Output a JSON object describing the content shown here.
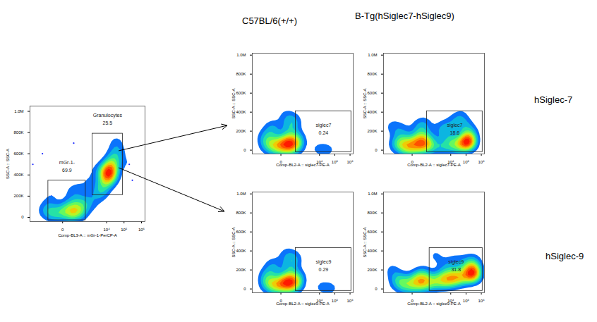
{
  "column_titles": [
    "C57BL/6(+/+)",
    "B-Tg(hSiglec7-hSiglec9)"
  ],
  "row_titles": [
    "hSiglec-7",
    "hSiglec-9"
  ],
  "chart_data": [
    {
      "type": "scatter",
      "x_label": "Comp-BL3-A :: mGr-1-PerCP-A",
      "y_label": "SSC-A :: SSC-A",
      "log": "x",
      "xlim": [
        -2200,
        1600000
      ],
      "xticks": [
        0,
        {
          "value": 10000,
          "label": "10⁴"
        },
        {
          "value": 100000,
          "label": "10⁵"
        },
        {
          "value": 1000000,
          "label": "10⁶"
        }
      ],
      "ylim": [
        -40000,
        1050000
      ],
      "yticks": [
        0,
        {
          "value": 200000,
          "label": "200K"
        },
        {
          "value": 400000,
          "label": "400K"
        },
        {
          "value": 600000,
          "label": "600K"
        },
        {
          "value": 800000,
          "label": "800K"
        },
        {
          "value": 1000000,
          "label": "1.0M"
        }
      ],
      "x": [
        0,
        50,
        -80,
        150,
        100,
        -150,
        250,
        20,
        -50,
        300,
        80,
        -200,
        180,
        400,
        -100,
        60,
        500,
        -300,
        200,
        30,
        120,
        -30,
        70,
        10,
        600,
        1500,
        3000,
        800,
        2500,
        -400,
        100,
        5000,
        13000,
        10000,
        16000,
        12000,
        20000,
        9000,
        14000,
        25000,
        7000,
        30000,
        11000,
        18000,
        5000,
        40000,
        13000,
        15000,
        35000,
        9500,
        12500,
        14500,
        45000,
        4500,
        22000,
        17000,
        11500,
        300000,
        200000,
        -1500
      ],
      "y": [
        40000,
        60000,
        30000,
        50000,
        80000,
        70000,
        40000,
        100000,
        20000,
        90000,
        130000,
        110000,
        160000,
        60000,
        200000,
        240000,
        120000,
        50000,
        280000,
        10000,
        30000,
        55000,
        45000,
        70000,
        180000,
        120000,
        200000,
        350000,
        450000,
        600000,
        700000,
        300000,
        420000,
        400000,
        450000,
        380000,
        500000,
        350000,
        430000,
        550000,
        300000,
        600000,
        460000,
        390000,
        260000,
        650000,
        340000,
        480000,
        720000,
        420000,
        440000,
        410000,
        580000,
        230000,
        470000,
        520000,
        370000,
        350000,
        500000,
        500000
      ],
      "gates": [
        {
          "label": "Granulocytes",
          "value": 25.5,
          "xlim": [
            1500,
            84000
          ],
          "ylim": [
            210000,
            790000
          ]
        },
        {
          "label": "mGr-1-",
          "value": 69.9,
          "xlim": [
            -170,
            600
          ],
          "ylim": [
            -27000,
            347000
          ]
        }
      ]
    },
    {
      "type": "scatter",
      "x_label": "Comp-BL2-A :: siglec7-PE-A",
      "y_label": "SSC-A :: SSC-A",
      "log": "x",
      "xlim": [
        -2200,
        1600000
      ],
      "xticks": [
        0,
        {
          "value": 10000,
          "label": "10⁴"
        },
        {
          "value": 100000,
          "label": "10⁵"
        },
        {
          "value": 1000000,
          "label": "10⁶"
        }
      ],
      "ylim": [
        -40000,
        1020000
      ],
      "yticks": [
        0,
        {
          "value": 200000,
          "label": "200K"
        },
        {
          "value": 400000,
          "label": "400K"
        },
        {
          "value": 600000,
          "label": "600K"
        },
        {
          "value": 800000,
          "label": "800K"
        },
        {
          "value": 1000000,
          "label": "1.0M"
        }
      ],
      "x": [
        0,
        40,
        -60,
        120,
        90,
        -120,
        200,
        10,
        -40,
        250,
        70,
        -180,
        150,
        320,
        -90,
        50,
        380,
        -250,
        160,
        25,
        100,
        -20,
        60,
        5,
        -300,
        180,
        30,
        -70,
        8000,
        40000
      ],
      "y": [
        40000,
        60000,
        30000,
        50000,
        80000,
        70000,
        40000,
        100000,
        20000,
        90000,
        130000,
        110000,
        160000,
        60000,
        200000,
        240000,
        120000,
        50000,
        280000,
        10000,
        30000,
        55000,
        45000,
        70000,
        150000,
        320000,
        360000,
        250000,
        15000,
        5000
      ],
      "gates": [
        {
          "label": "siglec7",
          "value": 0.24,
          "xlim": [
            250,
            1200000
          ],
          "ylim": [
            -20000,
            410000
          ]
        }
      ]
    },
    {
      "type": "scatter",
      "x_label": "Comp-BL2-A :: siglec7-PE-A",
      "y_label": "SSC-A :: SSC-A",
      "log": "x",
      "xlim": [
        -2200,
        1600000
      ],
      "xticks": [
        0,
        {
          "value": 10000,
          "label": "10⁴"
        },
        {
          "value": 100000,
          "label": "10⁵"
        },
        {
          "value": 1000000,
          "label": "10⁶"
        }
      ],
      "ylim": [
        -40000,
        1020000
      ],
      "yticks": [
        0,
        {
          "value": 200000,
          "label": "200K"
        },
        {
          "value": 400000,
          "label": "400K"
        },
        {
          "value": 600000,
          "label": "600K"
        },
        {
          "value": 800000,
          "label": "800K"
        },
        {
          "value": 1000000,
          "label": "1.0M"
        }
      ],
      "x": [
        0,
        40,
        -60,
        120,
        90,
        -120,
        200,
        10,
        -40,
        250,
        70,
        -180,
        150,
        320,
        -90,
        50,
        -300,
        160,
        25,
        -20,
        1000,
        3000,
        8000,
        15000,
        30000,
        60000,
        100000,
        130000,
        150000,
        120000,
        180000,
        90000,
        140000,
        5000,
        20000,
        50000,
        2000,
        80000,
        10000,
        -500,
        200000
      ],
      "y": [
        40000,
        60000,
        30000,
        50000,
        80000,
        70000,
        40000,
        100000,
        20000,
        90000,
        130000,
        110000,
        160000,
        60000,
        200000,
        240000,
        50000,
        280000,
        10000,
        55000,
        30000,
        40000,
        50000,
        60000,
        40000,
        70000,
        80000,
        90000,
        70000,
        110000,
        100000,
        60000,
        130000,
        250000,
        300000,
        350000,
        200000,
        250000,
        150000,
        250000,
        200000
      ],
      "gates": [
        {
          "label": "siglec7",
          "value": 18.6,
          "xlim": [
            250,
            1200000
          ],
          "ylim": [
            -20000,
            410000
          ]
        }
      ]
    },
    {
      "type": "scatter",
      "x_label": "Comp-BL2-A :: siglec9-PE-A",
      "y_label": "SSC-A :: SSC-A",
      "log": "x",
      "xlim": [
        -2200,
        1600000
      ],
      "xticks": [
        0,
        {
          "value": 10000,
          "label": "10⁴"
        },
        {
          "value": 100000,
          "label": "10⁵"
        },
        {
          "value": 1000000,
          "label": "10⁶"
        }
      ],
      "ylim": [
        -40000,
        1020000
      ],
      "yticks": [
        0,
        {
          "value": 200000,
          "label": "200K"
        },
        {
          "value": 400000,
          "label": "400K"
        },
        {
          "value": 600000,
          "label": "600K"
        },
        {
          "value": 800000,
          "label": "800K"
        },
        {
          "value": 1000000,
          "label": "1.0M"
        }
      ],
      "x": [
        0,
        30,
        -70,
        130,
        80,
        -110,
        210,
        15,
        -45,
        260,
        65,
        -170,
        140,
        300,
        -85,
        45,
        360,
        -240,
        170,
        20,
        110,
        -25,
        55,
        8,
        -280,
        190,
        35,
        -60,
        12000,
        60000
      ],
      "y": [
        45000,
        65000,
        25000,
        55000,
        85000,
        75000,
        35000,
        105000,
        15000,
        95000,
        125000,
        115000,
        170000,
        65000,
        210000,
        250000,
        130000,
        45000,
        290000,
        8000,
        35000,
        50000,
        40000,
        75000,
        140000,
        330000,
        370000,
        260000,
        20000,
        10000
      ],
      "gates": [
        {
          "label": "siglec9",
          "value": 0.29,
          "xlim": [
            250,
            1200000
          ],
          "ylim": [
            -20000,
            430000
          ]
        }
      ]
    },
    {
      "type": "scatter",
      "x_label": "Comp-BL2-A :: siglec9-PE-A",
      "y_label": "SSC-A :: SSC-A",
      "log": "x",
      "xlim": [
        -2200,
        1600000
      ],
      "xticks": [
        0,
        {
          "value": 10000,
          "label": "10⁴"
        },
        {
          "value": 100000,
          "label": "10⁵"
        },
        {
          "value": 1000000,
          "label": "10⁶"
        }
      ],
      "ylim": [
        -40000,
        1020000
      ],
      "yticks": [
        0,
        {
          "value": 200000,
          "label": "200K"
        },
        {
          "value": 400000,
          "label": "400K"
        },
        {
          "value": 600000,
          "label": "600K"
        },
        {
          "value": 800000,
          "label": "800K"
        },
        {
          "value": 1000000,
          "label": "1.0M"
        }
      ],
      "x": [
        0,
        40,
        -60,
        120,
        90,
        -120,
        200,
        10,
        -40,
        250,
        70,
        -180,
        150,
        -300,
        25,
        500,
        1000,
        1500,
        2500,
        4000,
        6000,
        9000,
        13000,
        20000,
        30000,
        45000,
        70000,
        3000,
        15000,
        50000,
        200000,
        250000,
        300000,
        280000,
        220000,
        350000,
        260000,
        240000,
        320000,
        270000,
        5000,
        20000,
        -600,
        100000,
        1000
      ],
      "y": [
        50000,
        70000,
        40000,
        60000,
        90000,
        80000,
        50000,
        110000,
        30000,
        100000,
        140000,
        120000,
        170000,
        60000,
        20000,
        60000,
        80000,
        70000,
        90000,
        100000,
        80000,
        110000,
        90000,
        120000,
        100000,
        130000,
        110000,
        150000,
        160000,
        170000,
        150000,
        170000,
        140000,
        200000,
        180000,
        160000,
        250000,
        130000,
        300000,
        190000,
        250000,
        300000,
        200000,
        280000,
        350000
      ],
      "gates": [
        {
          "label": "siglec9",
          "value": 31.8,
          "xlim": [
            380,
            1200000
          ],
          "ylim": [
            -20000,
            430000
          ]
        }
      ]
    }
  ]
}
